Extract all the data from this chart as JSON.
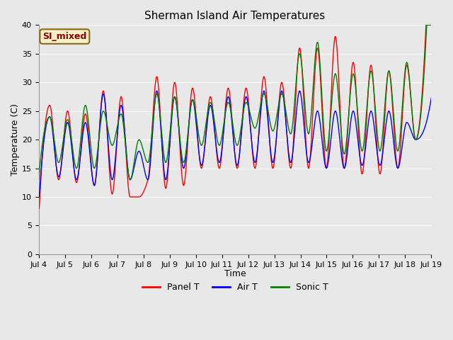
{
  "title": "Sherman Island Air Temperatures",
  "xlabel": "Time",
  "ylabel": "Temperature (C)",
  "ylim": [
    0,
    40
  ],
  "plot_bg": "#e8e8e8",
  "fig_bg": "#e8e8e8",
  "label_text": "SI_mixed",
  "label_facecolor": "#f5f0c8",
  "label_edgecolor": "#8b6914",
  "label_textcolor": "#8b0000",
  "legend_labels": [
    "Panel T",
    "Air T",
    "Sonic T"
  ],
  "line_colors": [
    "red",
    "blue",
    "green"
  ],
  "xtick_labels": [
    "Jul 4",
    "Jul 5",
    "Jul 6",
    "Jul 7",
    "Jul 8",
    "Jul 9",
    "Jul 10",
    "Jul 11",
    "Jul 12",
    "Jul 13",
    "Jul 14",
    "Jul 15",
    "Jul 16",
    "Jul 17",
    "Jul 18",
    "Jul 19"
  ],
  "ytick_values": [
    0,
    5,
    10,
    15,
    20,
    25,
    30,
    35,
    40
  ],
  "panel_peaks": [
    26,
    25,
    24.5,
    28.5,
    27.5,
    10,
    31,
    30,
    29,
    27.5,
    29,
    29,
    31,
    30,
    36,
    36,
    38,
    33.5,
    33,
    32,
    33,
    35
  ],
  "panel_troughs": [
    13,
    13,
    12.5,
    12,
    10.5,
    10,
    13,
    11.5,
    12,
    15,
    15,
    15,
    15,
    15,
    15,
    15,
    15,
    15,
    14,
    14,
    15,
    20
  ],
  "air_peaks": [
    24,
    23,
    23,
    28,
    26,
    18,
    28.5,
    27.5,
    27,
    26,
    27.5,
    27.5,
    28.5,
    28.5,
    28.5,
    25,
    25,
    25,
    25,
    25,
    23,
    22
  ],
  "air_troughs": [
    14,
    13.5,
    13,
    12,
    13,
    13,
    13,
    13,
    15,
    15.5,
    16,
    15.5,
    16,
    16,
    16,
    16,
    15,
    15,
    15.5,
    15.5,
    15,
    20
  ],
  "sonic_peaks": [
    24,
    23.5,
    26,
    25,
    24.5,
    20,
    28,
    27.5,
    27,
    26.5,
    26.5,
    26.5,
    28,
    28,
    35,
    37,
    31.5,
    31.5,
    32,
    32,
    33.5,
    33
  ],
  "sonic_troughs": [
    17,
    16,
    15,
    15,
    19,
    13,
    16,
    16,
    16,
    19,
    19,
    19,
    22,
    21.5,
    21,
    21,
    18,
    17.5,
    18,
    18,
    18,
    20
  ]
}
